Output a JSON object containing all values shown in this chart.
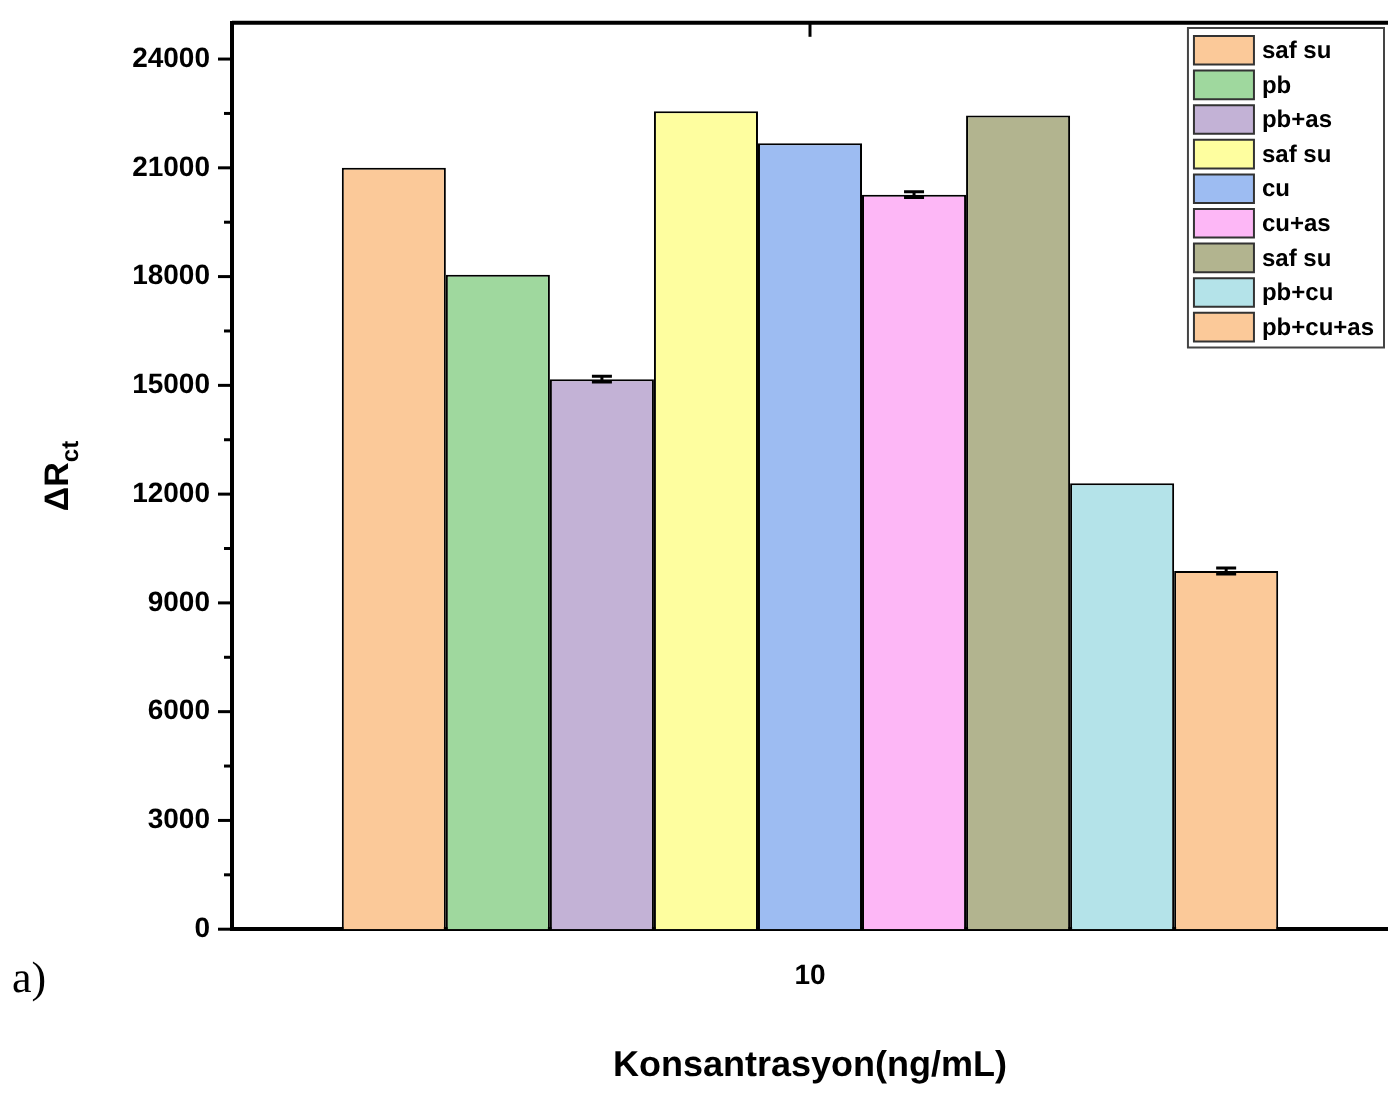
{
  "chart_data": {
    "type": "bar",
    "categories": [
      "10"
    ],
    "xlabel": "Konsantrasyon(ng/mL)",
    "ylabel": "ΔR$_{ct}$",
    "series": [
      {
        "name": "saf su",
        "color": "#fbc999",
        "values": [
          21000
        ],
        "errors": [
          null
        ]
      },
      {
        "name": "pb",
        "color": "#9fd89e",
        "values": [
          18050
        ],
        "errors": [
          null
        ]
      },
      {
        "name": "pb+as",
        "color": "#c3b2d6",
        "values": [
          15170
        ],
        "errors": [
          80
        ]
      },
      {
        "name": "saf su",
        "color": "#fefe9f",
        "values": [
          22560
        ],
        "errors": [
          null
        ]
      },
      {
        "name": "cu",
        "color": "#9dbcf2",
        "values": [
          21680
        ],
        "errors": [
          null
        ]
      },
      {
        "name": "cu+as",
        "color": "#fdb7f6",
        "values": [
          20260
        ],
        "errors": [
          80
        ]
      },
      {
        "name": "saf su",
        "color": "#b2b48f",
        "values": [
          22440
        ],
        "errors": [
          null
        ]
      },
      {
        "name": "pb+cu",
        "color": "#b4e3e9",
        "values": [
          12300
        ],
        "errors": [
          null
        ]
      },
      {
        "name": "pb+cu+as",
        "color": "#fbc999",
        "values": [
          9880
        ],
        "errors": [
          80
        ]
      }
    ],
    "ylim": [
      0,
      25000
    ],
    "yticks": [
      0,
      {
        "value": 1500,
        "label": null
      },
      3000,
      {
        "value": 4500,
        "label": null
      },
      6000,
      {
        "value": 7500,
        "label": null
      },
      9000,
      {
        "value": 10500,
        "label": null
      },
      12000,
      {
        "value": 13500,
        "label": null
      },
      15000,
      {
        "value": 16500,
        "label": null
      },
      18000,
      {
        "value": 19500,
        "label": null
      },
      21000,
      {
        "value": 22500,
        "label": null
      },
      24000
    ],
    "grid": false,
    "legend": "top right",
    "annotations": [
      "a)"
    ]
  }
}
